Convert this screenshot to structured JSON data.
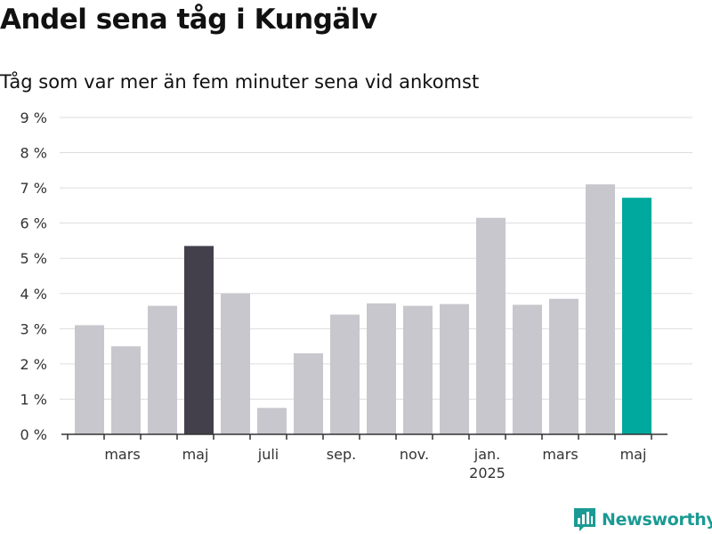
{
  "title": "Andel sena tåg i Kungälv",
  "subtitle": "Tåg som var mer än fem minuter sena vid ankomst",
  "brand": {
    "name": "Newsworthy",
    "color": "#1a9a94",
    "icon": "bar-chart-logo-icon"
  },
  "colors": {
    "default_bar": "#c8c7cd",
    "highlight_bar": "#43404c",
    "latest_bar": "#00a99d",
    "grid": "#dddddd",
    "axis": "#333333"
  },
  "chart_data": {
    "type": "bar",
    "title": "Andel sena tåg i Kungälv",
    "subtitle": "Tåg som var mer än fem minuter sena vid ankomst",
    "xlabel": "",
    "ylabel": "",
    "ylim": [
      0,
      9
    ],
    "y_ticks": [
      "0 %",
      "1 %",
      "2 %",
      "3 %",
      "4 %",
      "5 %",
      "6 %",
      "7 %",
      "8 %",
      "9 %"
    ],
    "grid": true,
    "categories": [
      "2024-02",
      "2024-03",
      "2024-04",
      "2024-05",
      "2024-06",
      "2024-07",
      "2024-08",
      "2024-09",
      "2024-10",
      "2024-11",
      "2024-12",
      "2025-01",
      "2025-02",
      "2025-03",
      "2025-04",
      "2025-05"
    ],
    "values": [
      3.1,
      2.5,
      3.65,
      5.35,
      4.0,
      0.75,
      2.3,
      3.4,
      3.72,
      3.65,
      3.7,
      6.15,
      3.68,
      3.85,
      7.1,
      6.72
    ],
    "highlight": {
      "2024-05": "highlight",
      "2025-05": "latest"
    },
    "x_tick_labels": [
      {
        "category": "2024-03",
        "label": "mars",
        "sublabel": ""
      },
      {
        "category": "2024-05",
        "label": "maj",
        "sublabel": ""
      },
      {
        "category": "2024-07",
        "label": "juli",
        "sublabel": ""
      },
      {
        "category": "2024-09",
        "label": "sep.",
        "sublabel": ""
      },
      {
        "category": "2024-11",
        "label": "nov.",
        "sublabel": ""
      },
      {
        "category": "2025-01",
        "label": "jan.",
        "sublabel": "2025"
      },
      {
        "category": "2025-03",
        "label": "mars",
        "sublabel": ""
      },
      {
        "category": "2025-05",
        "label": "maj",
        "sublabel": ""
      }
    ]
  }
}
